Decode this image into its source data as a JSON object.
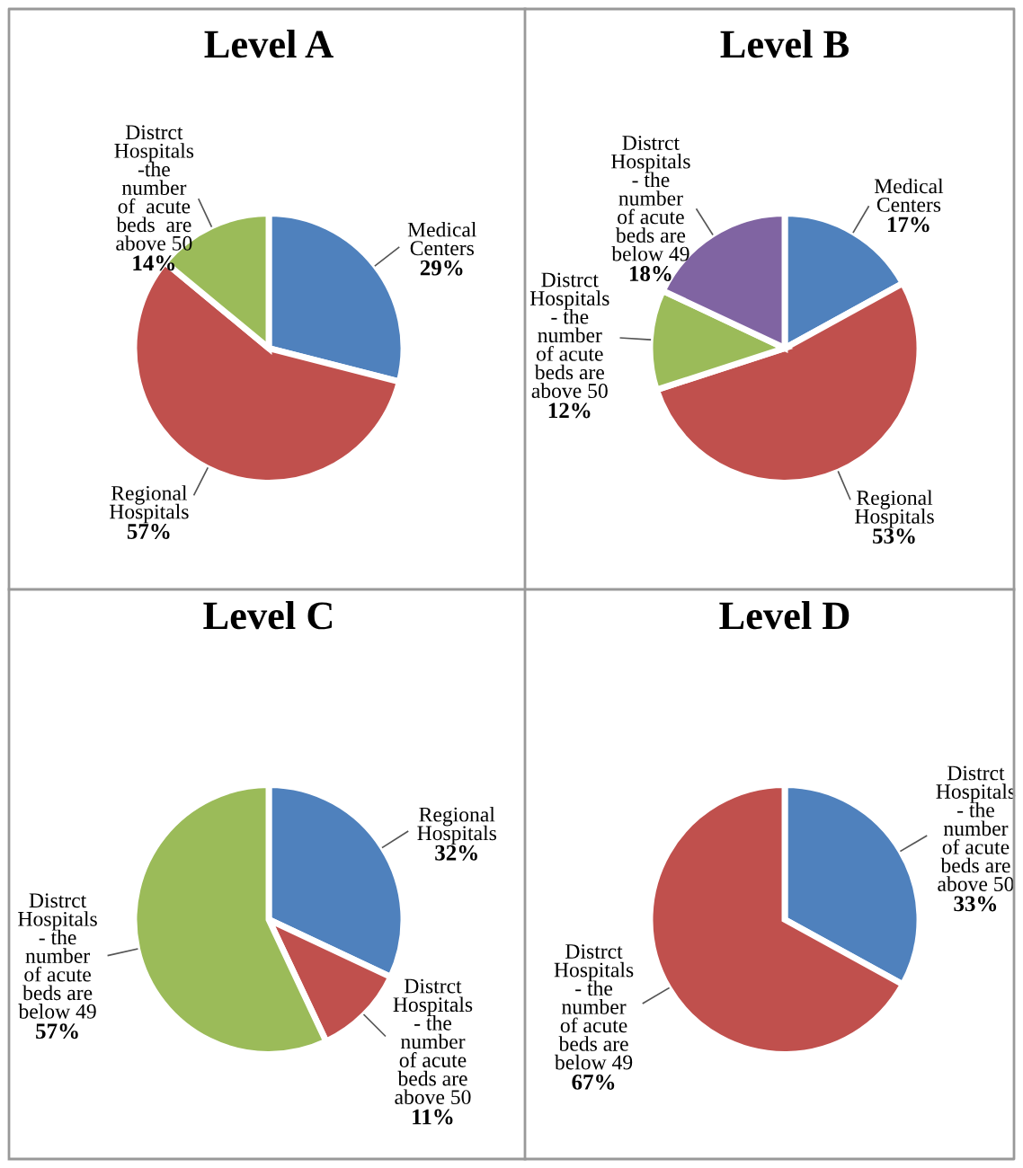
{
  "chart_data": [
    {
      "type": "pie",
      "title": "Level A",
      "categories": [
        "Medical\nCenters",
        "Regional\nHospitals",
        "Distrct\nHospitals\n-the\nnumber\nof  acute\nbeds  are\nabove 50"
      ],
      "values": [
        29,
        57,
        14
      ],
      "value_labels": [
        "29%",
        "57%",
        "14%"
      ],
      "colors": [
        "#4f81bd",
        "#c0504d",
        "#9bbb59"
      ]
    },
    {
      "type": "pie",
      "title": "Level B",
      "categories": [
        "Medical\nCenters",
        "Regional\nHospitals",
        "Distrct\nHospitals\n- the\nnumber\nof acute\nbeds are\nabove 50",
        "Distrct\nHospitals\n- the\nnumber\nof acute\nbeds are\nbelow 49"
      ],
      "values": [
        17,
        53,
        12,
        18
      ],
      "value_labels": [
        "17%",
        "53%",
        "12%",
        "18%"
      ],
      "colors": [
        "#4f81bd",
        "#c0504d",
        "#9bbb59",
        "#8064a2"
      ]
    },
    {
      "type": "pie",
      "title": "Level C",
      "categories": [
        "Regional\nHospitals",
        "Distrct\nHospitals\n- the\nnumber\nof acute\nbeds are\nabove 50",
        "Distrct\nHospitals\n- the\nnumber\nof acute\nbeds are\nbelow 49"
      ],
      "values": [
        32,
        11,
        57
      ],
      "value_labels": [
        "32%",
        "11%",
        "57%"
      ],
      "colors": [
        "#4f81bd",
        "#c0504d",
        "#9bbb59"
      ]
    },
    {
      "type": "pie",
      "title": "Level D",
      "categories": [
        "Distrct\nHospitals\n- the\nnumber\nof acute\nbeds are\nabove 50",
        "Distrct\nHospitals\n- the\nnumber\nof acute\nbeds are\nbelow 49"
      ],
      "values": [
        33,
        67
      ],
      "value_labels": [
        "33%",
        "67%"
      ],
      "colors": [
        "#4f81bd",
        "#c0504d"
      ]
    }
  ]
}
